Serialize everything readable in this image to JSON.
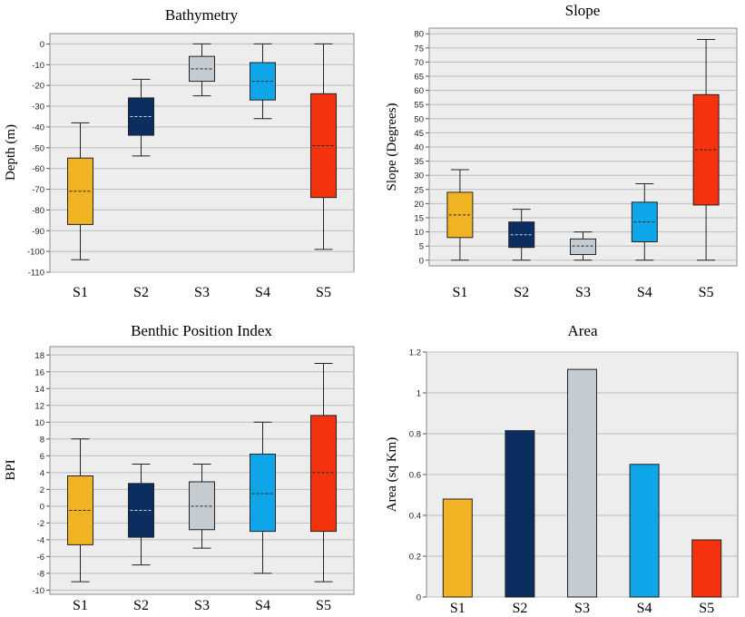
{
  "colors": {
    "S1": "#F0B323",
    "S2": "#0B2D5F",
    "S3": "#C5CCD1",
    "S4": "#0EA5E9",
    "S5": "#F4320D",
    "plot_bg": "#EDEDED",
    "grid": "#BDBDBD"
  },
  "chart_data": [
    {
      "id": "bathymetry",
      "type": "box",
      "title": "Bathymetry",
      "ylabel": "Depth (m)",
      "ylim": [
        -110,
        5
      ],
      "ticks": [
        0,
        -10,
        -20,
        -30,
        -40,
        -50,
        -60,
        -70,
        -80,
        -90,
        -100,
        -110
      ],
      "tick_labels": [
        "0",
        "-10",
        "-20",
        "-30",
        "-40",
        "-50",
        "-60",
        "-70",
        "-80",
        "-90",
        "-100",
        "-110"
      ],
      "categories": [
        "S1",
        "S2",
        "S3",
        "S4",
        "S5"
      ],
      "boxes": [
        {
          "min": -104,
          "q1": -87,
          "median": -71,
          "q3": -55,
          "max": -38
        },
        {
          "min": -54,
          "q1": -44,
          "median": -35,
          "q3": -26,
          "max": -17
        },
        {
          "min": -25,
          "q1": -18,
          "median": -12,
          "q3": -6,
          "max": 0
        },
        {
          "min": -36,
          "q1": -27,
          "median": -18,
          "q3": -9,
          "max": 0
        },
        {
          "min": -99,
          "q1": -74,
          "median": -49,
          "q3": -24,
          "max": 0
        }
      ]
    },
    {
      "id": "slope",
      "type": "box",
      "title": "Slope",
      "ylabel": "Slope (Degrees)",
      "ylim": [
        -2,
        82
      ],
      "ticks": [
        0,
        5,
        10,
        15,
        20,
        25,
        30,
        35,
        40,
        45,
        50,
        55,
        60,
        65,
        70,
        75,
        80
      ],
      "tick_labels": [
        "0",
        "5",
        "10",
        "15",
        "20",
        "25",
        "30",
        "35",
        "40",
        "45",
        "50",
        "55",
        "60",
        "65",
        "70",
        "75",
        "80"
      ],
      "categories": [
        "S1",
        "S2",
        "S3",
        "S4",
        "S5"
      ],
      "boxes": [
        {
          "min": 0,
          "q1": 8,
          "median": 16,
          "q3": 24,
          "max": 32
        },
        {
          "min": 0,
          "q1": 4.5,
          "median": 9,
          "q3": 13.5,
          "max": 18
        },
        {
          "min": 0,
          "q1": 2,
          "median": 5,
          "q3": 7.5,
          "max": 10
        },
        {
          "min": 0,
          "q1": 6.5,
          "median": 13.5,
          "q3": 20.5,
          "max": 27
        },
        {
          "min": 0,
          "q1": 19.5,
          "median": 39,
          "q3": 58.5,
          "max": 78
        }
      ]
    },
    {
      "id": "bpi",
      "type": "box",
      "title": "Benthic Position Index",
      "ylabel": "BPI",
      "ylim": [
        -10.5,
        19
      ],
      "ticks": [
        18,
        16,
        14,
        12,
        10,
        8,
        6,
        4,
        2,
        0,
        -2,
        -4,
        -6,
        -8,
        -10
      ],
      "tick_labels": [
        "18",
        "16",
        "14",
        "12",
        "10",
        "8",
        "6",
        "4",
        "2",
        "0",
        "-2",
        "-4",
        "-6",
        "-8",
        "-10"
      ],
      "categories": [
        "S1",
        "S2",
        "S3",
        "S4",
        "S5"
      ],
      "boxes": [
        {
          "min": -9,
          "q1": -4.6,
          "median": -0.5,
          "q3": 3.6,
          "max": 8
        },
        {
          "min": -7,
          "q1": -3.7,
          "median": -0.5,
          "q3": 2.7,
          "max": 5
        },
        {
          "min": -5,
          "q1": -2.8,
          "median": 0,
          "q3": 2.9,
          "max": 5
        },
        {
          "min": -8,
          "q1": -3,
          "median": 1.5,
          "q3": 6.2,
          "max": 10
        },
        {
          "min": -9,
          "q1": -3,
          "median": 4,
          "q3": 10.8,
          "max": 17
        }
      ]
    },
    {
      "id": "area",
      "type": "bar",
      "title": "Area",
      "ylabel": "Area (sq Km)",
      "ylim": [
        0,
        1.2
      ],
      "ticks": [
        0,
        0.2,
        0.4,
        0.6,
        0.8,
        1,
        1.2
      ],
      "tick_labels": [
        "0",
        "0.2",
        "0.4",
        "0.6",
        "0.8",
        "1",
        "1.2"
      ],
      "categories": [
        "S1",
        "S2",
        "S3",
        "S4",
        "S5"
      ],
      "values": [
        0.48,
        0.815,
        1.115,
        0.65,
        0.28
      ]
    }
  ]
}
